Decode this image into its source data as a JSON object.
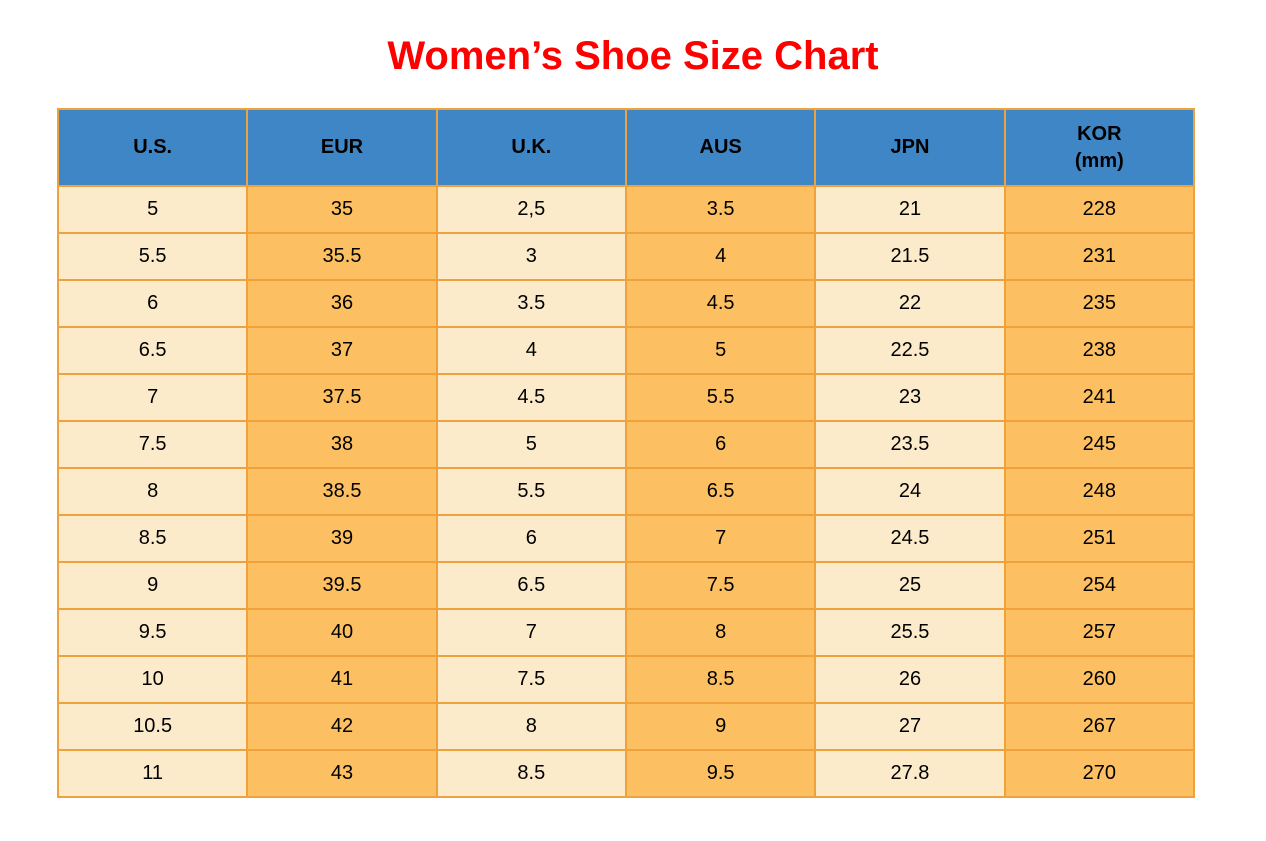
{
  "page": {
    "title": "Women’s Shoe Size Chart"
  },
  "colors": {
    "title": "#fe0000",
    "header-bg": "#3e86c5",
    "cell-light": "#fcebca",
    "cell-orange": "#fcbf62",
    "border": "#efa23c",
    "text": "#000000",
    "page-bg": "#ffffff"
  },
  "table": {
    "columns": [
      {
        "key": "us",
        "label": "U.S."
      },
      {
        "key": "eur",
        "label": "EUR"
      },
      {
        "key": "uk",
        "label": "U.K."
      },
      {
        "key": "aus",
        "label": "AUS"
      },
      {
        "key": "jpn",
        "label": "JPN"
      },
      {
        "key": "kor",
        "label": "KOR\n(mm)"
      }
    ],
    "rows": [
      [
        "5",
        "35",
        "2,5",
        "3.5",
        "21",
        "228"
      ],
      [
        "5.5",
        "35.5",
        "3",
        "4",
        "21.5",
        "231"
      ],
      [
        "6",
        "36",
        "3.5",
        "4.5",
        "22",
        "235"
      ],
      [
        "6.5",
        "37",
        "4",
        "5",
        "22.5",
        "238"
      ],
      [
        "7",
        "37.5",
        "4.5",
        "5.5",
        "23",
        "241"
      ],
      [
        "7.5",
        "38",
        "5",
        "6",
        "23.5",
        "245"
      ],
      [
        "8",
        "38.5",
        "5.5",
        "6.5",
        "24",
        "248"
      ],
      [
        "8.5",
        "39",
        "6",
        "7",
        "24.5",
        "251"
      ],
      [
        "9",
        "39.5",
        "6.5",
        "7.5",
        "25",
        "254"
      ],
      [
        "9.5",
        "40",
        "7",
        "8",
        "25.5",
        "257"
      ],
      [
        "10",
        "41",
        "7.5",
        "8.5",
        "26",
        "260"
      ],
      [
        "10.5",
        "42",
        "8",
        "9",
        "27",
        "267"
      ],
      [
        "11",
        "43",
        "8.5",
        "9.5",
        "27.8",
        "270"
      ]
    ]
  },
  "chart_data": {
    "type": "table",
    "title": "Women’s Shoe Size Chart",
    "columns": [
      "U.S.",
      "EUR",
      "U.K.",
      "AUS",
      "JPN",
      "KOR (mm)"
    ],
    "rows": [
      [
        "5",
        "35",
        "2,5",
        "3.5",
        "21",
        "228"
      ],
      [
        "5.5",
        "35.5",
        "3",
        "4",
        "21.5",
        "231"
      ],
      [
        "6",
        "36",
        "3.5",
        "4.5",
        "22",
        "235"
      ],
      [
        "6.5",
        "37",
        "4",
        "5",
        "22.5",
        "238"
      ],
      [
        "7",
        "37.5",
        "4.5",
        "5.5",
        "23",
        "241"
      ],
      [
        "7.5",
        "38",
        "5",
        "6",
        "23.5",
        "245"
      ],
      [
        "8",
        "38.5",
        "5.5",
        "6.5",
        "24",
        "248"
      ],
      [
        "8.5",
        "39",
        "6",
        "7",
        "24.5",
        "251"
      ],
      [
        "9",
        "39.5",
        "6.5",
        "7.5",
        "25",
        "254"
      ],
      [
        "9.5",
        "40",
        "7",
        "8",
        "25.5",
        "257"
      ],
      [
        "10",
        "41",
        "7.5",
        "8.5",
        "26",
        "260"
      ],
      [
        "10.5",
        "42",
        "8",
        "9",
        "27",
        "267"
      ],
      [
        "11",
        "43",
        "8.5",
        "9.5",
        "27.8",
        "270"
      ]
    ],
    "layout": {
      "header_position": "top",
      "column_color_alternation": true
    }
  }
}
